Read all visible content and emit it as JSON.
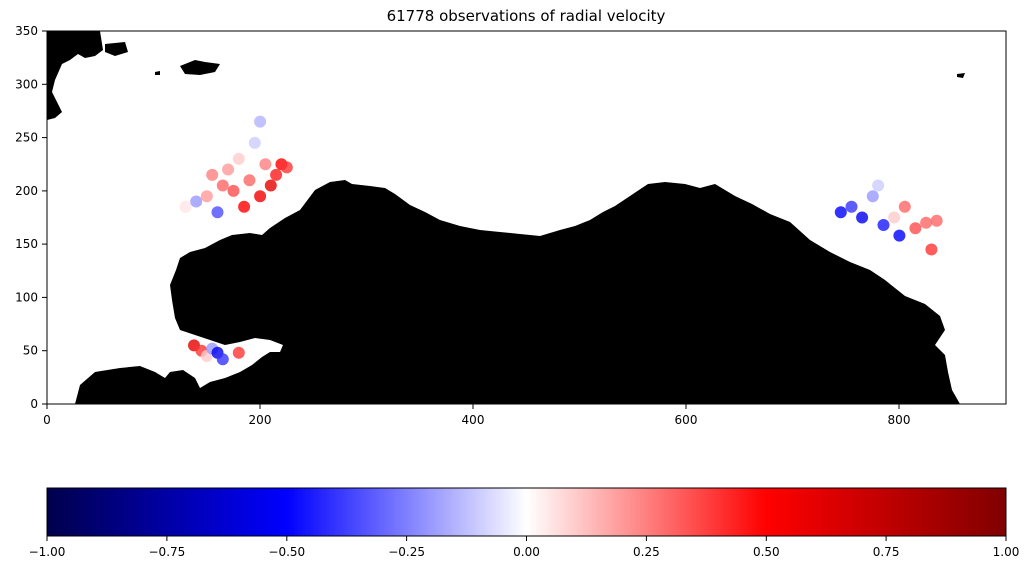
{
  "chart_data": [
    {
      "type": "scatter",
      "title": "61778 observations of radial velocity",
      "xlabel": "",
      "ylabel": "",
      "xlim": [
        0,
        900
      ],
      "ylim": [
        0,
        350
      ],
      "xticks": [
        "0",
        "200",
        "400",
        "600",
        "800"
      ],
      "yticks": [
        "0",
        "50",
        "100",
        "150",
        "200",
        "250",
        "300",
        "350"
      ],
      "background_mask_color": "#000000",
      "colormap": "seismic",
      "color_range": [
        -1,
        1
      ],
      "point_color_samples": [
        {
          "x": 130,
          "y": 185,
          "v": 0.05
        },
        {
          "x": 140,
          "y": 190,
          "v": -0.2
        },
        {
          "x": 150,
          "y": 195,
          "v": 0.2
        },
        {
          "x": 155,
          "y": 215,
          "v": 0.25
        },
        {
          "x": 160,
          "y": 180,
          "v": -0.35
        },
        {
          "x": 165,
          "y": 205,
          "v": 0.3
        },
        {
          "x": 170,
          "y": 220,
          "v": 0.2
        },
        {
          "x": 175,
          "y": 200,
          "v": 0.35
        },
        {
          "x": 180,
          "y": 230,
          "v": 0.1
        },
        {
          "x": 185,
          "y": 185,
          "v": 0.5
        },
        {
          "x": 190,
          "y": 210,
          "v": 0.3
        },
        {
          "x": 195,
          "y": 245,
          "v": -0.1
        },
        {
          "x": 200,
          "y": 265,
          "v": -0.15
        },
        {
          "x": 200,
          "y": 195,
          "v": 0.55
        },
        {
          "x": 205,
          "y": 225,
          "v": 0.25
        },
        {
          "x": 210,
          "y": 205,
          "v": 0.6
        },
        {
          "x": 215,
          "y": 215,
          "v": 0.45
        },
        {
          "x": 220,
          "y": 225,
          "v": 0.5
        },
        {
          "x": 225,
          "y": 222,
          "v": 0.4
        },
        {
          "x": 138,
          "y": 55,
          "v": 0.6
        },
        {
          "x": 145,
          "y": 50,
          "v": 0.4
        },
        {
          "x": 150,
          "y": 45,
          "v": 0.1
        },
        {
          "x": 155,
          "y": 52,
          "v": -0.2
        },
        {
          "x": 160,
          "y": 48,
          "v": -0.55
        },
        {
          "x": 165,
          "y": 42,
          "v": -0.4
        },
        {
          "x": 180,
          "y": 48,
          "v": 0.4
        },
        {
          "x": 745,
          "y": 180,
          "v": -0.5
        },
        {
          "x": 755,
          "y": 185,
          "v": -0.4
        },
        {
          "x": 765,
          "y": 175,
          "v": -0.55
        },
        {
          "x": 775,
          "y": 195,
          "v": -0.2
        },
        {
          "x": 780,
          "y": 205,
          "v": -0.1
        },
        {
          "x": 785,
          "y": 168,
          "v": -0.45
        },
        {
          "x": 795,
          "y": 175,
          "v": 0.1
        },
        {
          "x": 800,
          "y": 158,
          "v": -0.5
        },
        {
          "x": 805,
          "y": 185,
          "v": 0.3
        },
        {
          "x": 815,
          "y": 165,
          "v": 0.35
        },
        {
          "x": 825,
          "y": 170,
          "v": 0.3
        },
        {
          "x": 835,
          "y": 172,
          "v": 0.3
        },
        {
          "x": 830,
          "y": 145,
          "v": 0.4
        }
      ]
    },
    {
      "type": "heatmap",
      "colormap": "seismic",
      "colormap_stops": [
        {
          "v": -1.0,
          "color": "#00004c"
        },
        {
          "v": -0.5,
          "color": "#0000ff"
        },
        {
          "v": 0.0,
          "color": "#ffffff"
        },
        {
          "v": 0.5,
          "color": "#ff0000"
        },
        {
          "v": 1.0,
          "color": "#800000"
        }
      ],
      "xlim": [
        -1,
        1
      ],
      "xticks": [
        "−1.00",
        "−0.75",
        "−0.50",
        "−0.25",
        "0.00",
        "0.25",
        "0.50",
        "0.75",
        "1.00"
      ]
    }
  ]
}
